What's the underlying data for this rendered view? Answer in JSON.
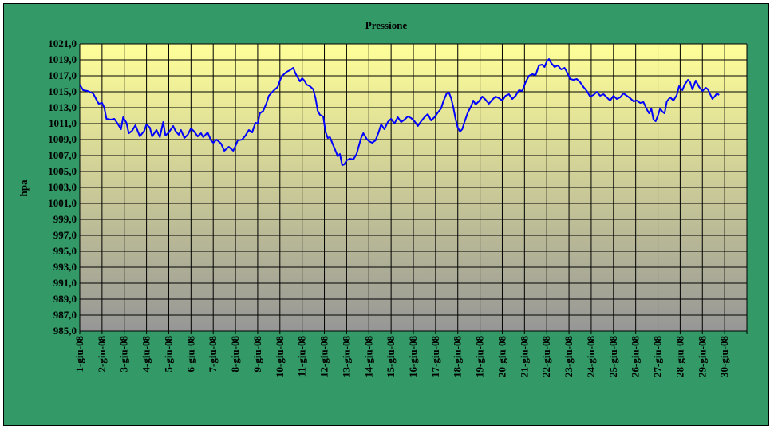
{
  "chart_data": {
    "type": "line",
    "title": "Pressione",
    "xlabel": "",
    "ylabel": "hpa",
    "ylim": [
      985,
      1021
    ],
    "yticks": [
      "1021,0",
      "1019,0",
      "1017,0",
      "1015,0",
      "1013,0",
      "1011,0",
      "1009,0",
      "1007,0",
      "1005,0",
      "1003,0",
      "1001,0",
      "999,0",
      "997,0",
      "995,0",
      "993,0",
      "991,0",
      "989,0",
      "987,0",
      "985,0"
    ],
    "categories": [
      "1-giu-08",
      "2-giu-08",
      "3-giu-08",
      "4-giu-08",
      "5-giu-08",
      "6-giu-08",
      "7-giu-08",
      "8-giu-08",
      "9-giu-08",
      "10-giu-08",
      "11-giu-08",
      "12-giu-08",
      "13-giu-08",
      "14-giu-08",
      "15-giu-08",
      "16-giu-08",
      "17-giu-08",
      "18-giu-08",
      "19-giu-08",
      "20-giu-08",
      "21-giu-08",
      "22-giu-08",
      "23-giu-08",
      "24-giu-08",
      "25-giu-08",
      "26-giu-08",
      "27-giu-08",
      "28-giu-08",
      "29-giu-08",
      "30-giu-08"
    ],
    "grid": true,
    "colors": {
      "background": "#339966",
      "line": "#0000ff",
      "plot_top": "#ffff99",
      "plot_bottom": "#969696"
    },
    "series": [
      {
        "values": [
          [
            0,
            1015.9
          ],
          [
            0.15,
            1015.2
          ],
          [
            0.35,
            1015.1
          ],
          [
            0.6,
            1014.8
          ],
          [
            0.75,
            1014.0
          ],
          [
            0.85,
            1013.5
          ],
          [
            1.0,
            1013.6
          ],
          [
            1.1,
            1013.0
          ],
          [
            1.2,
            1011.6
          ],
          [
            1.4,
            1011.5
          ],
          [
            1.55,
            1011.6
          ],
          [
            1.7,
            1011.0
          ],
          [
            1.85,
            1010.3
          ],
          [
            1.95,
            1011.8
          ],
          [
            2.1,
            1011.1
          ],
          [
            2.2,
            1009.8
          ],
          [
            2.35,
            1010.1
          ],
          [
            2.5,
            1010.8
          ],
          [
            2.7,
            1009.4
          ],
          [
            2.9,
            1010.1
          ],
          [
            3.0,
            1010.9
          ],
          [
            3.15,
            1010.5
          ],
          [
            3.25,
            1009.4
          ],
          [
            3.45,
            1010.2
          ],
          [
            3.6,
            1009.3
          ],
          [
            3.75,
            1011.2
          ],
          [
            3.85,
            1009.5
          ],
          [
            4.0,
            1009.9
          ],
          [
            4.2,
            1010.7
          ],
          [
            4.3,
            1010.1
          ],
          [
            4.45,
            1009.6
          ],
          [
            4.55,
            1010.2
          ],
          [
            4.7,
            1009.2
          ],
          [
            4.85,
            1009.6
          ],
          [
            5.0,
            1010.4
          ],
          [
            5.15,
            1010.0
          ],
          [
            5.3,
            1009.4
          ],
          [
            5.45,
            1009.8
          ],
          [
            5.55,
            1009.3
          ],
          [
            5.75,
            1009.9
          ],
          [
            5.9,
            1008.9
          ],
          [
            6.0,
            1008.6
          ],
          [
            6.15,
            1009.0
          ],
          [
            6.35,
            1008.5
          ],
          [
            6.5,
            1007.6
          ],
          [
            6.7,
            1008.1
          ],
          [
            6.9,
            1007.6
          ],
          [
            7.0,
            1008.2
          ],
          [
            7.1,
            1008.9
          ],
          [
            7.3,
            1009.0
          ],
          [
            7.45,
            1009.5
          ],
          [
            7.6,
            1010.2
          ],
          [
            7.75,
            1009.9
          ],
          [
            7.9,
            1011.1
          ],
          [
            8.0,
            1011.0
          ],
          [
            8.1,
            1012.3
          ],
          [
            8.25,
            1012.6
          ],
          [
            8.4,
            1013.6
          ],
          [
            8.5,
            1014.5
          ],
          [
            8.7,
            1015.1
          ],
          [
            8.9,
            1015.6
          ],
          [
            9.0,
            1016.4
          ],
          [
            9.1,
            1017.0
          ],
          [
            9.3,
            1017.5
          ],
          [
            9.45,
            1017.7
          ],
          [
            9.6,
            1018.0
          ],
          [
            9.7,
            1017.3
          ],
          [
            9.8,
            1016.8
          ],
          [
            9.9,
            1016.3
          ],
          [
            10.0,
            1016.7
          ],
          [
            10.1,
            1016.4
          ],
          [
            10.2,
            1015.9
          ],
          [
            10.35,
            1015.7
          ],
          [
            10.5,
            1015.3
          ],
          [
            10.6,
            1014.2
          ],
          [
            10.7,
            1012.6
          ],
          [
            10.8,
            1012.1
          ],
          [
            10.95,
            1011.9
          ],
          [
            11.05,
            1010.0
          ],
          [
            11.15,
            1009.2
          ],
          [
            11.25,
            1009.3
          ],
          [
            11.35,
            1008.6
          ],
          [
            11.5,
            1007.6
          ],
          [
            11.6,
            1006.9
          ],
          [
            11.7,
            1007.2
          ],
          [
            11.8,
            1005.8
          ],
          [
            11.9,
            1005.9
          ],
          [
            12.0,
            1006.4
          ],
          [
            12.15,
            1006.6
          ],
          [
            12.3,
            1006.5
          ],
          [
            12.45,
            1007.2
          ],
          [
            12.55,
            1008.2
          ],
          [
            12.65,
            1009.2
          ],
          [
            12.75,
            1009.8
          ],
          [
            12.9,
            1009.1
          ],
          [
            13.0,
            1008.8
          ],
          [
            13.15,
            1008.6
          ],
          [
            13.3,
            1008.9
          ],
          [
            13.45,
            1010.0
          ],
          [
            13.55,
            1010.9
          ],
          [
            13.7,
            1010.3
          ],
          [
            13.85,
            1011.2
          ],
          [
            14.0,
            1011.6
          ],
          [
            14.15,
            1011.0
          ],
          [
            14.3,
            1011.8
          ],
          [
            14.45,
            1011.2
          ],
          [
            14.6,
            1011.5
          ],
          [
            14.75,
            1011.9
          ],
          [
            14.9,
            1011.7
          ],
          [
            15.05,
            1011.3
          ],
          [
            15.2,
            1010.7
          ],
          [
            15.35,
            1011.3
          ],
          [
            15.5,
            1011.8
          ],
          [
            15.65,
            1012.2
          ],
          [
            15.8,
            1011.4
          ],
          [
            15.95,
            1011.8
          ],
          [
            16.1,
            1012.4
          ],
          [
            16.25,
            1012.9
          ],
          [
            16.35,
            1013.8
          ],
          [
            16.5,
            1014.8
          ],
          [
            16.6,
            1014.9
          ],
          [
            16.7,
            1014.2
          ],
          [
            16.8,
            1013.0
          ],
          [
            16.9,
            1011.6
          ],
          [
            17.0,
            1010.5
          ],
          [
            17.1,
            1010.0
          ],
          [
            17.2,
            1010.3
          ],
          [
            17.3,
            1011.2
          ],
          [
            17.45,
            1012.4
          ],
          [
            17.6,
            1013.2
          ],
          [
            17.7,
            1013.9
          ],
          [
            17.8,
            1013.4
          ],
          [
            17.95,
            1013.8
          ],
          [
            18.1,
            1014.4
          ],
          [
            18.25,
            1014.0
          ],
          [
            18.4,
            1013.5
          ],
          [
            18.55,
            1014.0
          ],
          [
            18.7,
            1014.4
          ],
          [
            18.85,
            1014.2
          ],
          [
            19.0,
            1013.9
          ],
          [
            19.15,
            1014.5
          ],
          [
            19.3,
            1014.7
          ],
          [
            19.45,
            1014.1
          ],
          [
            19.6,
            1014.5
          ],
          [
            19.75,
            1015.2
          ],
          [
            19.9,
            1015.1
          ],
          [
            20.05,
            1016.2
          ],
          [
            20.2,
            1017.0
          ],
          [
            20.35,
            1017.2
          ],
          [
            20.5,
            1017.1
          ],
          [
            20.65,
            1018.3
          ],
          [
            20.8,
            1018.4
          ],
          [
            20.9,
            1018.1
          ],
          [
            21.0,
            1018.8
          ],
          [
            21.1,
            1019.1
          ],
          [
            21.2,
            1018.6
          ],
          [
            21.35,
            1018.1
          ],
          [
            21.5,
            1018.3
          ],
          [
            21.65,
            1017.8
          ],
          [
            21.8,
            1018.0
          ],
          [
            21.9,
            1017.5
          ],
          [
            22.05,
            1016.6
          ],
          [
            22.2,
            1016.5
          ],
          [
            22.35,
            1016.6
          ],
          [
            22.5,
            1016.2
          ],
          [
            22.65,
            1015.6
          ],
          [
            22.8,
            1015.1
          ],
          [
            22.95,
            1014.4
          ],
          [
            23.1,
            1014.6
          ],
          [
            23.25,
            1015.0
          ],
          [
            23.4,
            1014.5
          ],
          [
            23.55,
            1014.7
          ],
          [
            23.7,
            1014.3
          ],
          [
            23.85,
            1013.9
          ],
          [
            24.0,
            1014.5
          ],
          [
            24.15,
            1014.1
          ],
          [
            24.3,
            1014.3
          ],
          [
            24.45,
            1014.8
          ],
          [
            24.6,
            1014.5
          ],
          [
            24.75,
            1014.2
          ],
          [
            24.9,
            1013.8
          ],
          [
            25.05,
            1013.9
          ],
          [
            25.2,
            1013.6
          ],
          [
            25.35,
            1013.7
          ],
          [
            25.5,
            1012.8
          ],
          [
            25.6,
            1012.3
          ],
          [
            25.7,
            1012.9
          ],
          [
            25.8,
            1011.5
          ],
          [
            25.9,
            1011.3
          ],
          [
            26.0,
            1012.0
          ],
          [
            26.1,
            1012.9
          ],
          [
            26.2,
            1012.5
          ],
          [
            26.3,
            1012.3
          ],
          [
            26.4,
            1013.8
          ],
          [
            26.55,
            1014.3
          ],
          [
            26.7,
            1013.9
          ],
          [
            26.85,
            1014.6
          ],
          [
            26.95,
            1015.7
          ],
          [
            27.1,
            1015.2
          ],
          [
            27.2,
            1015.9
          ],
          [
            27.35,
            1016.5
          ],
          [
            27.45,
            1016.2
          ],
          [
            27.55,
            1015.3
          ],
          [
            27.7,
            1016.4
          ],
          [
            27.85,
            1015.6
          ],
          [
            28.0,
            1015.1
          ],
          [
            28.15,
            1015.5
          ],
          [
            28.25,
            1015.3
          ],
          [
            28.35,
            1014.7
          ],
          [
            28.45,
            1014.1
          ],
          [
            28.55,
            1014.4
          ],
          [
            28.65,
            1014.8
          ],
          [
            28.75,
            1014.6
          ]
        ]
      }
    ]
  }
}
